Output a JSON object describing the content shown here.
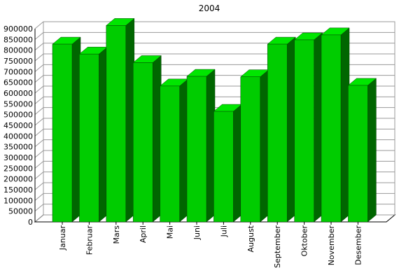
{
  "colors": {
    "bar_front": "#00cc00",
    "bar_side": "#006600",
    "bar_top": "#00e600",
    "grid": "#999999",
    "wall": "#ffffff",
    "axis": "#000000"
  },
  "chart_data": {
    "type": "bar",
    "title": "2004",
    "xlabel": "",
    "ylabel": "",
    "ylim": [
      0,
      900000
    ],
    "y_ticks": [
      "0",
      "50000",
      "100000",
      "150000",
      "200000",
      "250000",
      "300000",
      "350000",
      "400000",
      "450000",
      "500000",
      "550000",
      "600000",
      "650000",
      "700000",
      "750000",
      "800000",
      "850000",
      "900000"
    ],
    "grid": true,
    "three_d": true,
    "categories": [
      "Januar",
      "Februar",
      "Mars",
      "April",
      "Mai",
      "Juni",
      "Juli",
      "August",
      "September",
      "Oktober",
      "November",
      "Desember"
    ],
    "values": [
      828000,
      782000,
      915000,
      742000,
      633000,
      678000,
      515000,
      676000,
      828000,
      848000,
      871000,
      636000
    ]
  }
}
